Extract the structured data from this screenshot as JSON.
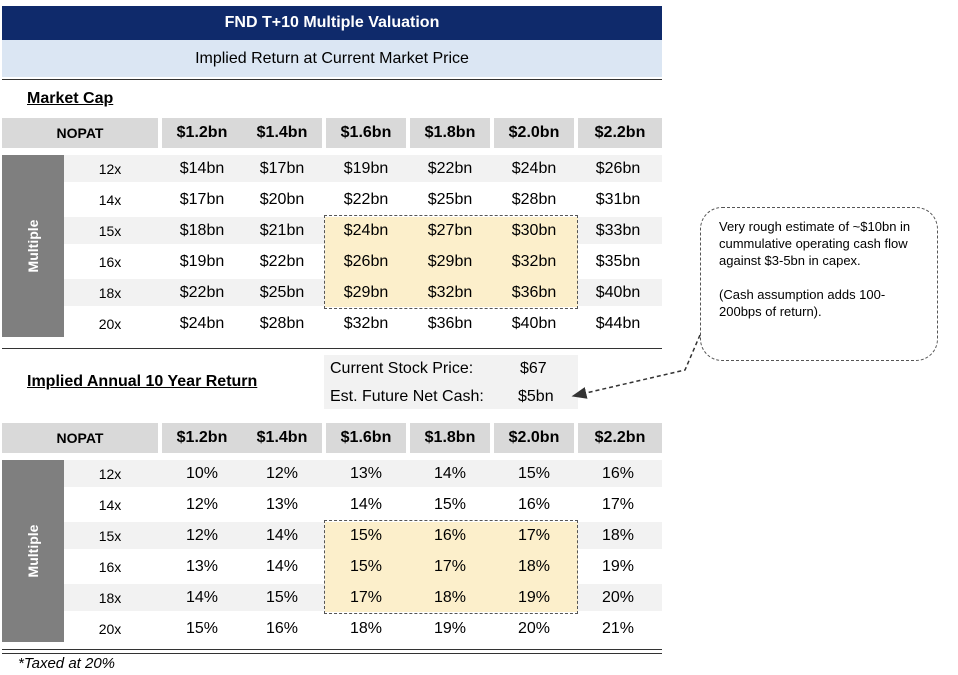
{
  "title": "FND T+10 Multiple Valuation",
  "subtitle": "Implied Return at Current Market Price",
  "market_cap": {
    "heading": "Market Cap",
    "nopat_label": "NOPAT",
    "multiple_label": "Multiple",
    "columns": [
      "$1.2bn",
      "$1.4bn",
      "$1.6bn",
      "$1.8bn",
      "$2.0bn",
      "$2.2bn"
    ],
    "rows": [
      {
        "label": "12x",
        "values": [
          "$14bn",
          "$17bn",
          "$19bn",
          "$22bn",
          "$24bn",
          "$26bn"
        ]
      },
      {
        "label": "14x",
        "values": [
          "$17bn",
          "$20bn",
          "$22bn",
          "$25bn",
          "$28bn",
          "$31bn"
        ]
      },
      {
        "label": "15x",
        "values": [
          "$18bn",
          "$21bn",
          "$24bn",
          "$27bn",
          "$30bn",
          "$33bn"
        ]
      },
      {
        "label": "16x",
        "values": [
          "$19bn",
          "$22bn",
          "$26bn",
          "$29bn",
          "$32bn",
          "$35bn"
        ]
      },
      {
        "label": "18x",
        "values": [
          "$22bn",
          "$25bn",
          "$29bn",
          "$32bn",
          "$36bn",
          "$40bn"
        ]
      },
      {
        "label": "20x",
        "values": [
          "$24bn",
          "$28bn",
          "$32bn",
          "$36bn",
          "$40bn",
          "$44bn"
        ]
      }
    ]
  },
  "assumptions": {
    "stock_price_label": "Current Stock Price:",
    "stock_price_value": "$67",
    "net_cash_label": "Est. Future Net Cash:",
    "net_cash_value": "$5bn"
  },
  "implied_return": {
    "heading": "Implied Annual 10 Year Return",
    "nopat_label": "NOPAT",
    "multiple_label": "Multiple",
    "columns": [
      "$1.2bn",
      "$1.4bn",
      "$1.6bn",
      "$1.8bn",
      "$2.0bn",
      "$2.2bn"
    ],
    "rows": [
      {
        "label": "12x",
        "values": [
          "10%",
          "12%",
          "13%",
          "14%",
          "15%",
          "16%"
        ]
      },
      {
        "label": "14x",
        "values": [
          "12%",
          "13%",
          "14%",
          "15%",
          "16%",
          "17%"
        ]
      },
      {
        "label": "15x",
        "values": [
          "12%",
          "14%",
          "15%",
          "16%",
          "17%",
          "18%"
        ]
      },
      {
        "label": "16x",
        "values": [
          "13%",
          "14%",
          "15%",
          "17%",
          "18%",
          "19%"
        ]
      },
      {
        "label": "18x",
        "values": [
          "14%",
          "15%",
          "17%",
          "18%",
          "19%",
          "20%"
        ]
      },
      {
        "label": "20x",
        "values": [
          "15%",
          "16%",
          "18%",
          "19%",
          "20%",
          "21%"
        ]
      }
    ]
  },
  "callout": {
    "line1": "Very rough estimate of ~$10bn in cummulative operating cash flow against $3-5bn in capex.",
    "line2": "(Cash assumption adds 100-200bps of return)."
  },
  "footnote": "*Taxed at 20%",
  "colors": {
    "title_bg": "#0f2a6b",
    "subtitle_bg": "#dbe6f3",
    "header_bg": "#d9d9d9",
    "multiple_bar": "#7f7f7f",
    "highlight": "#fcefcb"
  }
}
